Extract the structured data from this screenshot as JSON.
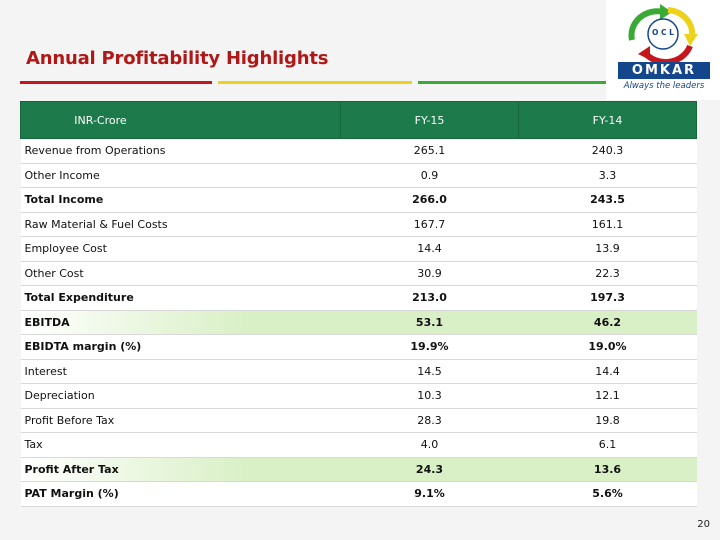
{
  "slide": {
    "title": "Annual Profitability Highlights",
    "page_number": "20",
    "accent_colors": {
      "red": "#c4161c",
      "yellow": "#ecd21a",
      "green": "#3aa935",
      "header_green": "#1d7a4a",
      "highlight": "#d9f0c6"
    }
  },
  "logo": {
    "emblem_text": "O C L",
    "wordmark": "OMKAR",
    "tagline": "Always the leaders",
    "icon": "recycle-arrows-logo-icon"
  },
  "table": {
    "headers": [
      "INR-Crore",
      "FY-15",
      "FY-14"
    ],
    "rows": [
      {
        "label": "Revenue from Operations",
        "fy15": "265.1",
        "fy14": "240.3",
        "bold": false,
        "highlight": false
      },
      {
        "label": "Other Income",
        "fy15": "0.9",
        "fy14": "3.3",
        "bold": false,
        "highlight": false
      },
      {
        "label": "Total Income",
        "fy15": "266.0",
        "fy14": "243.5",
        "bold": true,
        "highlight": false
      },
      {
        "label": "Raw Material & Fuel Costs",
        "fy15": "167.7",
        "fy14": "161.1",
        "bold": false,
        "highlight": false
      },
      {
        "label": "Employee Cost",
        "fy15": "14.4",
        "fy14": "13.9",
        "bold": false,
        "highlight": false
      },
      {
        "label": "Other Cost",
        "fy15": "30.9",
        "fy14": "22.3",
        "bold": false,
        "highlight": false
      },
      {
        "label": "Total Expenditure",
        "fy15": "213.0",
        "fy14": "197.3",
        "bold": true,
        "highlight": false
      },
      {
        "label": "EBITDA",
        "fy15": "53.1",
        "fy14": "46.2",
        "bold": true,
        "highlight": true
      },
      {
        "label": "EBIDTA margin (%)",
        "fy15": "19.9%",
        "fy14": "19.0%",
        "bold": true,
        "highlight": false
      },
      {
        "label": "Interest",
        "fy15": "14.5",
        "fy14": "14.4",
        "bold": false,
        "highlight": false
      },
      {
        "label": "Depreciation",
        "fy15": "10.3",
        "fy14": "12.1",
        "bold": false,
        "highlight": false
      },
      {
        "label": "Profit Before Tax",
        "fy15": "28.3",
        "fy14": "19.8",
        "bold": false,
        "highlight": false
      },
      {
        "label": "Tax",
        "fy15": "4.0",
        "fy14": "6.1",
        "bold": false,
        "highlight": false
      },
      {
        "label": "Profit After Tax",
        "fy15": "24.3",
        "fy14": "13.6",
        "bold": true,
        "highlight": true
      },
      {
        "label": "PAT Margin (%)",
        "fy15": "9.1%",
        "fy14": "5.6%",
        "bold": true,
        "highlight": false
      }
    ]
  }
}
